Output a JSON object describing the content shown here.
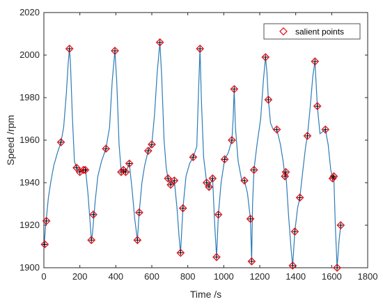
{
  "colors": {
    "line": "#2c7bb6",
    "marker": "#e8000b",
    "cross": "#000000",
    "axis": "#262626",
    "background": "#ffffff"
  },
  "chart_data": {
    "type": "line",
    "xlabel": "Time /s",
    "ylabel": "Speed /rpm",
    "xlim": [
      0,
      1800
    ],
    "ylim": [
      1900,
      2020
    ],
    "xticks": [
      0,
      200,
      400,
      600,
      800,
      1000,
      1200,
      1400,
      1600,
      1800
    ],
    "yticks": [
      1900,
      1920,
      1940,
      1960,
      1980,
      2000,
      2020
    ],
    "grid": false,
    "legend": {
      "position": "top-right",
      "entries": [
        "salient points"
      ]
    },
    "series": [
      {
        "name": "salient points",
        "marker": "diamond",
        "points": [
          [
            5,
            1911
          ],
          [
            14,
            1922
          ],
          [
            95,
            1959
          ],
          [
            142,
            2003
          ],
          [
            182,
            1947
          ],
          [
            200,
            1945
          ],
          [
            220,
            1946
          ],
          [
            230,
            1946
          ],
          [
            264,
            1913
          ],
          [
            275,
            1925
          ],
          [
            345,
            1956
          ],
          [
            395,
            2002
          ],
          [
            430,
            1945
          ],
          [
            442,
            1946
          ],
          [
            455,
            1945
          ],
          [
            475,
            1949
          ],
          [
            520,
            1913
          ],
          [
            530,
            1926
          ],
          [
            580,
            1955
          ],
          [
            600,
            1958
          ],
          [
            645,
            2006
          ],
          [
            690,
            1942
          ],
          [
            705,
            1939
          ],
          [
            725,
            1941
          ],
          [
            760,
            1907
          ],
          [
            773,
            1928
          ],
          [
            830,
            1952
          ],
          [
            868,
            2003
          ],
          [
            905,
            1940
          ],
          [
            918,
            1938
          ],
          [
            938,
            1942
          ],
          [
            960,
            1905
          ],
          [
            970,
            1925
          ],
          [
            1005,
            1951
          ],
          [
            1045,
            1960
          ],
          [
            1058,
            1984
          ],
          [
            1115,
            1941
          ],
          [
            1148,
            1923
          ],
          [
            1155,
            1903
          ],
          [
            1168,
            1946
          ],
          [
            1232,
            1999
          ],
          [
            1248,
            1979
          ],
          [
            1295,
            1965
          ],
          [
            1340,
            1943
          ],
          [
            1345,
            1945
          ],
          [
            1383,
            1901
          ],
          [
            1395,
            1917
          ],
          [
            1423,
            1933
          ],
          [
            1465,
            1962
          ],
          [
            1507,
            1997
          ],
          [
            1520,
            1976
          ],
          [
            1565,
            1965
          ],
          [
            1605,
            1942
          ],
          [
            1612,
            1943
          ],
          [
            1630,
            1900
          ],
          [
            1650,
            1920
          ]
        ]
      }
    ],
    "line_points": [
      [
        0,
        1909
      ],
      [
        10,
        1920
      ],
      [
        25,
        1933
      ],
      [
        40,
        1941
      ],
      [
        55,
        1948
      ],
      [
        75,
        1954
      ],
      [
        95,
        1959
      ],
      [
        110,
        1966
      ],
      [
        125,
        1982
      ],
      [
        135,
        1996
      ],
      [
        142,
        2003
      ],
      [
        148,
        1996
      ],
      [
        158,
        1972
      ],
      [
        170,
        1950
      ],
      [
        182,
        1947
      ],
      [
        200,
        1945
      ],
      [
        220,
        1946
      ],
      [
        232,
        1946
      ],
      [
        245,
        1935
      ],
      [
        258,
        1920
      ],
      [
        264,
        1913
      ],
      [
        270,
        1916
      ],
      [
        285,
        1931
      ],
      [
        300,
        1943
      ],
      [
        320,
        1950
      ],
      [
        345,
        1956
      ],
      [
        365,
        1966
      ],
      [
        380,
        1988
      ],
      [
        395,
        2002
      ],
      [
        405,
        1988
      ],
      [
        418,
        1958
      ],
      [
        430,
        1945
      ],
      [
        442,
        1946
      ],
      [
        455,
        1945
      ],
      [
        475,
        1949
      ],
      [
        490,
        1937
      ],
      [
        505,
        1923
      ],
      [
        520,
        1913
      ],
      [
        530,
        1926
      ],
      [
        545,
        1940
      ],
      [
        560,
        1948
      ],
      [
        580,
        1955
      ],
      [
        600,
        1958
      ],
      [
        615,
        1972
      ],
      [
        630,
        1992
      ],
      [
        645,
        2006
      ],
      [
        655,
        1990
      ],
      [
        668,
        1960
      ],
      [
        680,
        1947
      ],
      [
        690,
        1942
      ],
      [
        705,
        1939
      ],
      [
        725,
        1941
      ],
      [
        740,
        1928
      ],
      [
        752,
        1914
      ],
      [
        760,
        1907
      ],
      [
        773,
        1928
      ],
      [
        790,
        1943
      ],
      [
        810,
        1949
      ],
      [
        830,
        1952
      ],
      [
        850,
        1957
      ],
      [
        858,
        1978
      ],
      [
        868,
        2003
      ],
      [
        876,
        1978
      ],
      [
        888,
        1952
      ],
      [
        905,
        1940
      ],
      [
        918,
        1938
      ],
      [
        938,
        1942
      ],
      [
        950,
        1920
      ],
      [
        960,
        1905
      ],
      [
        970,
        1925
      ],
      [
        985,
        1940
      ],
      [
        1005,
        1951
      ],
      [
        1025,
        1954
      ],
      [
        1045,
        1960
      ],
      [
        1052,
        1970
      ],
      [
        1058,
        1984
      ],
      [
        1065,
        1966
      ],
      [
        1080,
        1950
      ],
      [
        1100,
        1941
      ],
      [
        1115,
        1941
      ],
      [
        1132,
        1935
      ],
      [
        1148,
        1923
      ],
      [
        1155,
        1903
      ],
      [
        1160,
        1930
      ],
      [
        1168,
        1946
      ],
      [
        1185,
        1958
      ],
      [
        1205,
        1970
      ],
      [
        1220,
        1988
      ],
      [
        1232,
        1999
      ],
      [
        1240,
        1992
      ],
      [
        1248,
        1979
      ],
      [
        1260,
        1968
      ],
      [
        1275,
        1965
      ],
      [
        1295,
        1965
      ],
      [
        1315,
        1958
      ],
      [
        1330,
        1950
      ],
      [
        1340,
        1943
      ],
      [
        1345,
        1945
      ],
      [
        1360,
        1925
      ],
      [
        1375,
        1908
      ],
      [
        1383,
        1901
      ],
      [
        1395,
        1917
      ],
      [
        1410,
        1928
      ],
      [
        1423,
        1933
      ],
      [
        1440,
        1946
      ],
      [
        1455,
        1957
      ],
      [
        1465,
        1962
      ],
      [
        1480,
        1975
      ],
      [
        1495,
        1990
      ],
      [
        1507,
        1997
      ],
      [
        1520,
        1976
      ],
      [
        1535,
        1963
      ],
      [
        1550,
        1964
      ],
      [
        1565,
        1965
      ],
      [
        1580,
        1958
      ],
      [
        1595,
        1946
      ],
      [
        1605,
        1942
      ],
      [
        1612,
        1943
      ],
      [
        1620,
        1920
      ],
      [
        1630,
        1900
      ],
      [
        1640,
        1912
      ],
      [
        1650,
        1920
      ]
    ]
  }
}
